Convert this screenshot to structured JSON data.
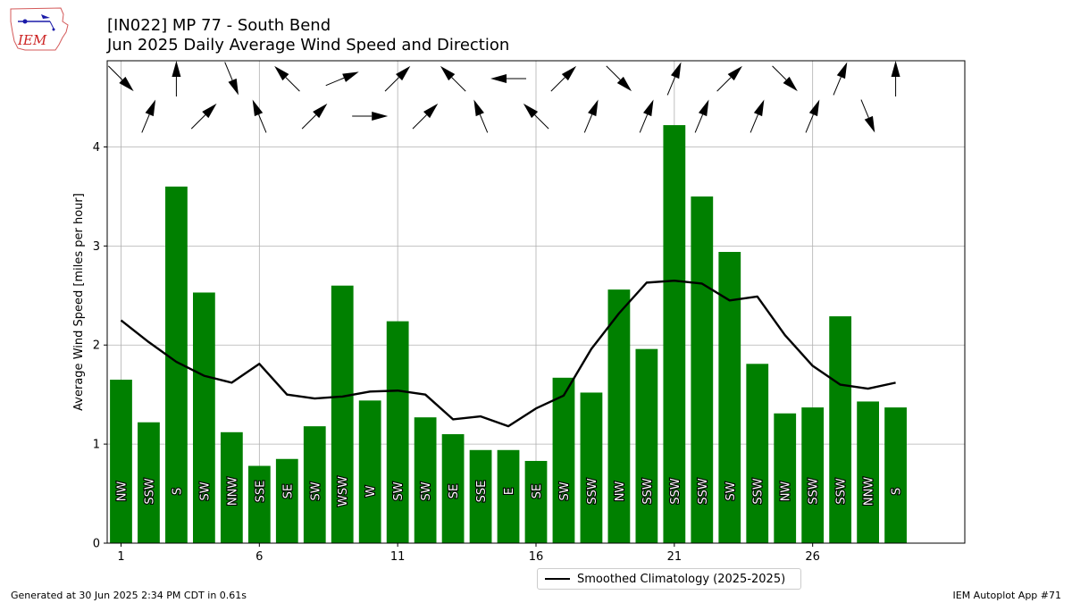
{
  "logo_text": "IEM",
  "title": "[IN022] MP 77 - South Bend",
  "subtitle": "Jun 2025 Daily Average Wind Speed and Direction",
  "footer_left": "Generated at 30 Jun 2025 2:34 PM CDT in 0.61s",
  "footer_right": "IEM Autoplot App #71",
  "colors": {
    "bar": "#008000",
    "climo_line": "#000000",
    "grid": "#b0b0b0"
  },
  "chart_data": {
    "type": "bar",
    "ylabel": "Average Wind Speed [miles per hour]",
    "xlabel": "",
    "ylim": [
      0,
      4.87
    ],
    "xlim": [
      0.5,
      31.5
    ],
    "x_ticks": [
      1,
      6,
      11,
      16,
      21,
      26
    ],
    "y_ticks": [
      0,
      1,
      2,
      3,
      4
    ],
    "grid": true,
    "legend_position": "bottom-center",
    "categories": [
      1,
      2,
      3,
      4,
      5,
      6,
      7,
      8,
      9,
      10,
      11,
      12,
      13,
      14,
      15,
      16,
      17,
      18,
      19,
      20,
      21,
      22,
      23,
      24,
      25,
      26,
      27,
      28,
      29
    ],
    "values": [
      1.65,
      1.22,
      3.6,
      2.53,
      1.12,
      0.78,
      0.85,
      1.18,
      2.6,
      1.44,
      2.24,
      1.27,
      1.1,
      0.94,
      0.94,
      0.83,
      1.67,
      1.52,
      2.56,
      1.96,
      4.22,
      3.5,
      2.94,
      1.81,
      1.31,
      1.37,
      2.29,
      1.43,
      1.37
    ],
    "directions": [
      "NW",
      "SSW",
      "S",
      "SW",
      "NNW",
      "SSE",
      "SE",
      "SW",
      "WSW",
      "W",
      "SW",
      "SW",
      "SE",
      "SSE",
      "E",
      "SE",
      "SW",
      "SSW",
      "NW",
      "SSW",
      "SSW",
      "SSW",
      "SW",
      "SSW",
      "NW",
      "SSW",
      "SSW",
      "NNW",
      "S"
    ],
    "series": [
      {
        "name": "Smoothed Climatology (2025-2025)",
        "type": "line",
        "values": [
          2.25,
          2.03,
          1.83,
          1.69,
          1.62,
          1.81,
          1.5,
          1.46,
          1.48,
          1.53,
          1.54,
          1.5,
          1.25,
          1.28,
          1.18,
          1.36,
          1.49,
          1.96,
          2.32,
          2.63,
          2.65,
          2.62,
          2.45,
          2.49,
          2.1,
          1.79,
          1.6,
          1.56,
          1.62
        ]
      }
    ]
  }
}
